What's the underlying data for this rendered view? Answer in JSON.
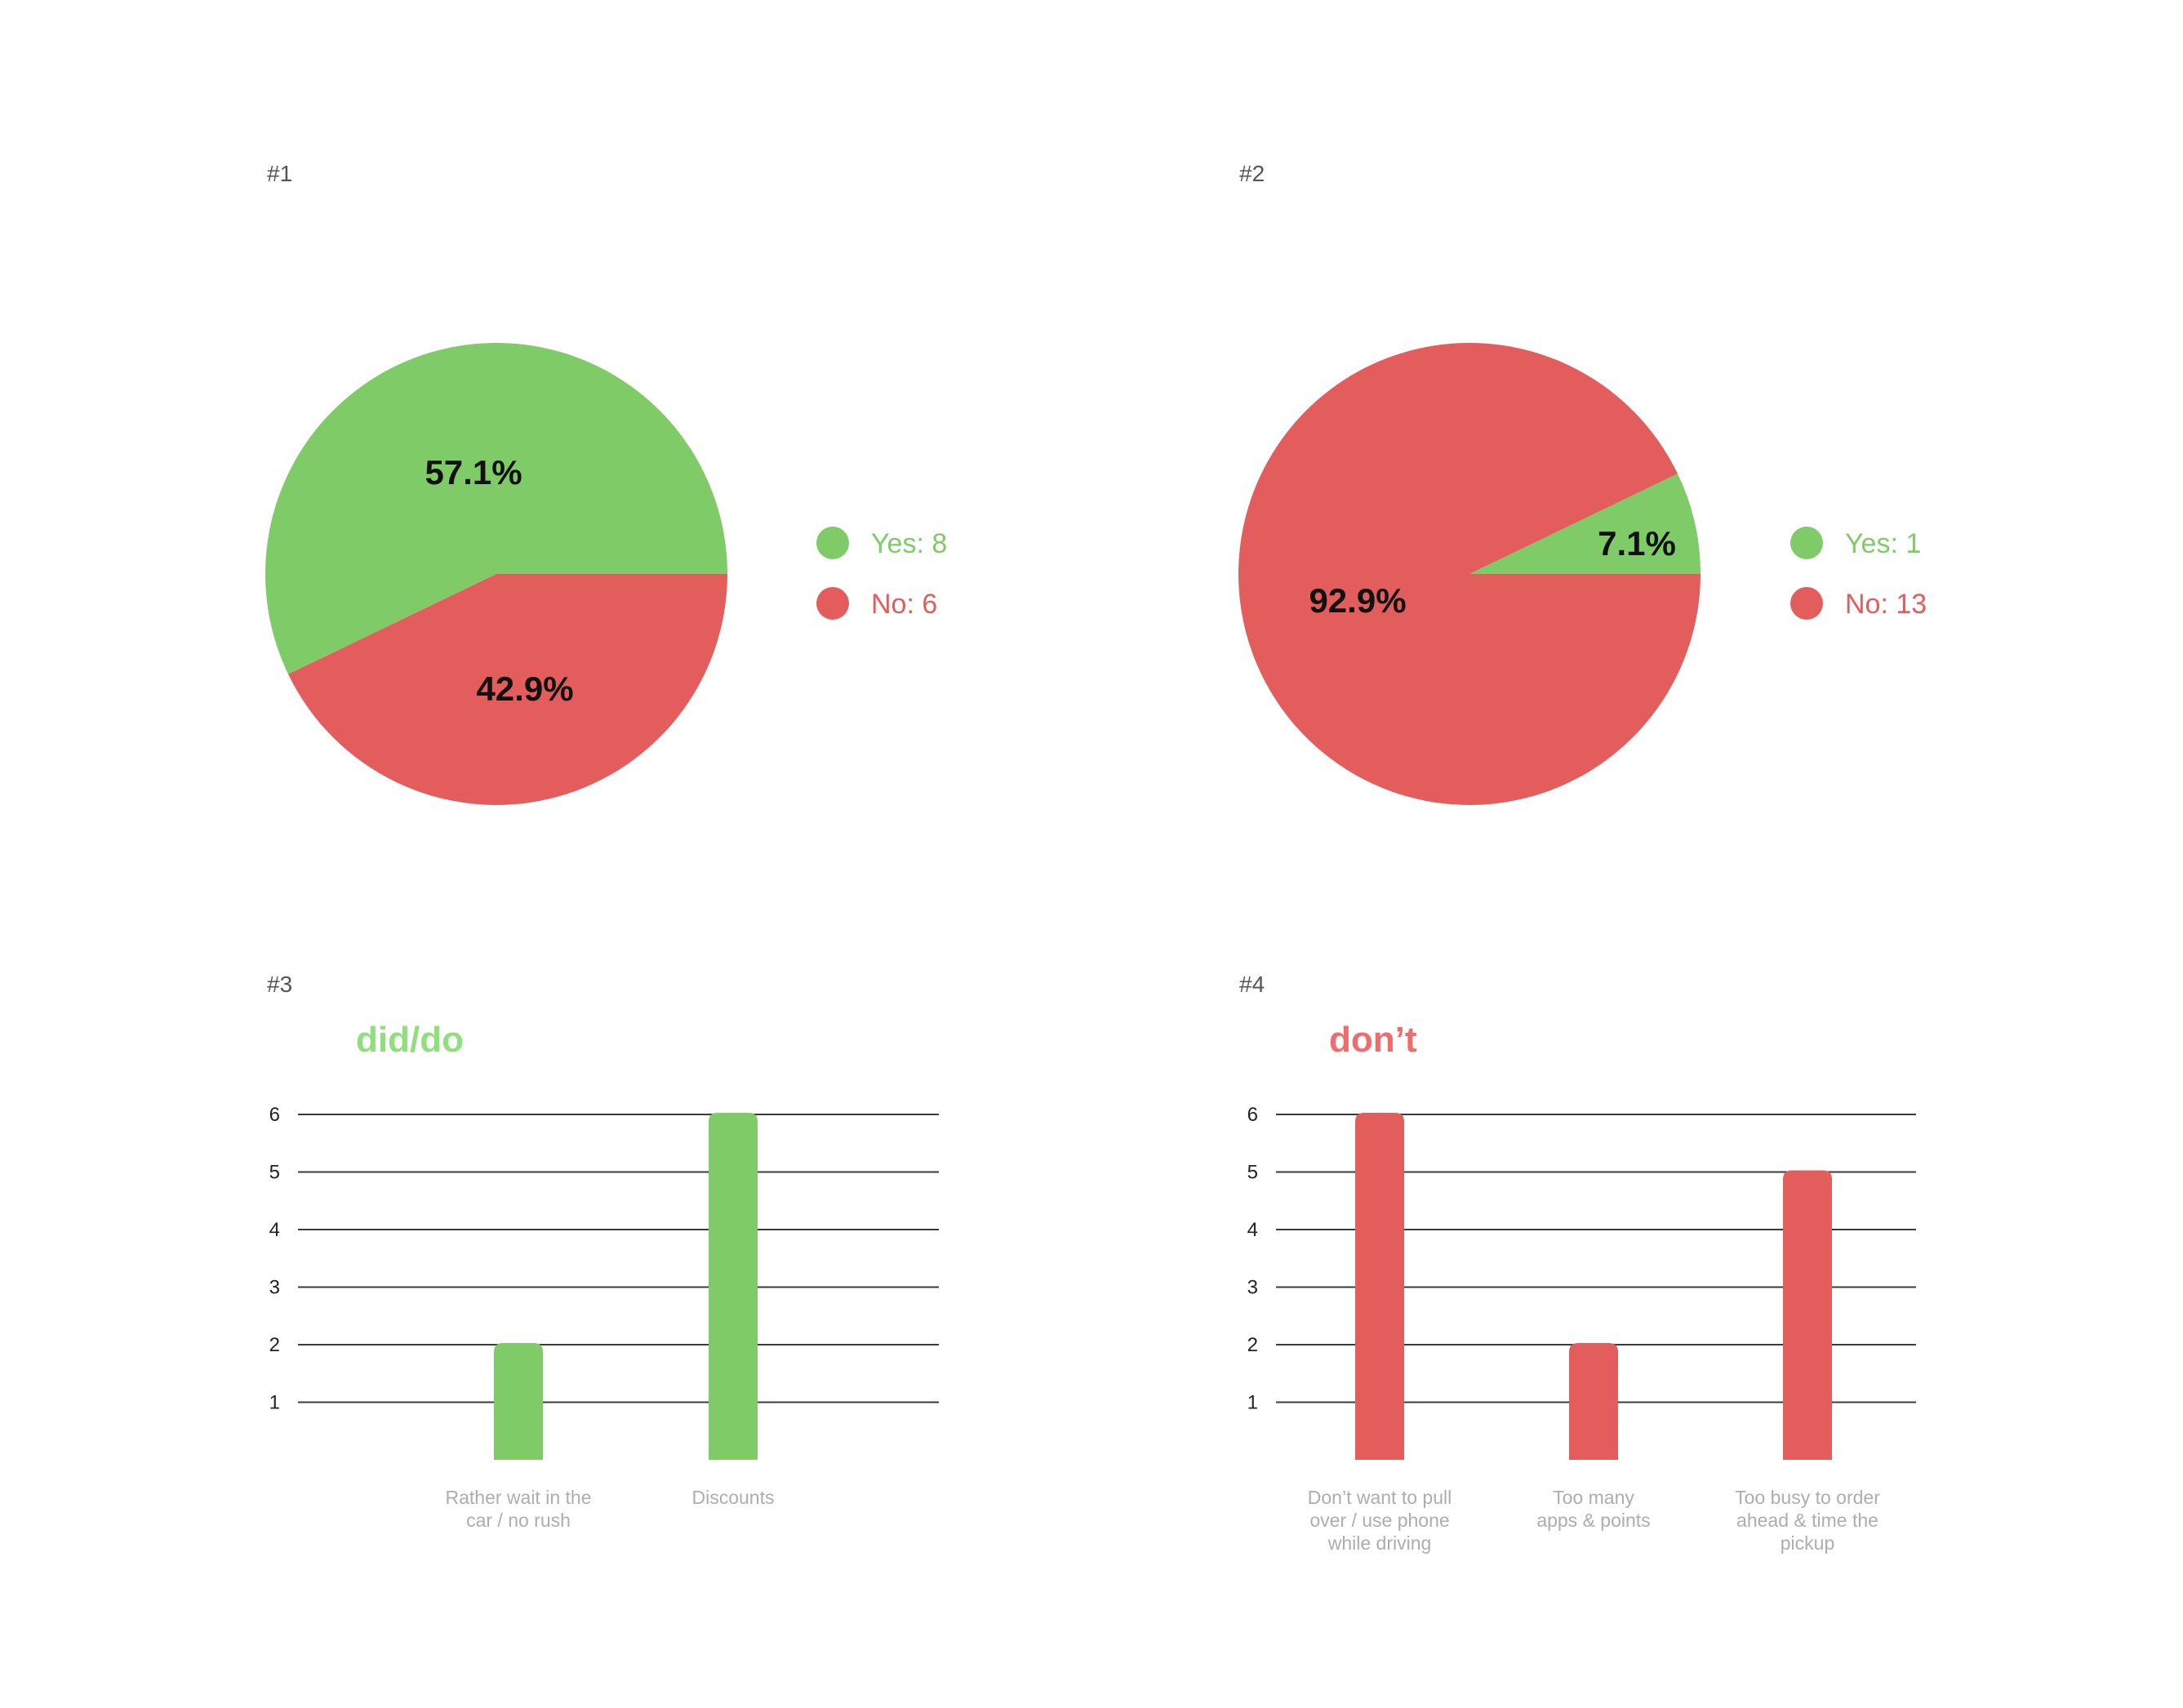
{
  "colors": {
    "green": "#7ECB67",
    "red": "#E35D5D",
    "grid": "#3b3b3b",
    "tick": "#222222",
    "cat_label": "#ADADAD",
    "panel_label": "#555555",
    "slice_label": "#111111"
  },
  "chart_data": [
    {
      "type": "pie",
      "panel_label": "#1",
      "slices": [
        {
          "legend": "Yes: 8",
          "name": "Yes",
          "value": 8,
          "pct_label": "57.1%",
          "color": "#7ECB67"
        },
        {
          "legend": "No: 6",
          "name": "No",
          "value": 6,
          "pct_label": "42.9%",
          "color": "#E35D5D"
        }
      ],
      "legend_placement": "right"
    },
    {
      "type": "pie",
      "panel_label": "#2",
      "slices": [
        {
          "legend": "Yes: 1",
          "name": "Yes",
          "value": 1,
          "pct_label": "7.1%",
          "color": "#7ECB67"
        },
        {
          "legend": "No: 13",
          "name": "No",
          "value": 13,
          "pct_label": "92.9%",
          "color": "#E35D5D"
        }
      ],
      "legend_placement": "right"
    },
    {
      "type": "bar",
      "panel_label": "#3",
      "title": "did/do",
      "title_color": "#8EE07C",
      "bar_color": "#7ECB67",
      "categories": [
        "",
        "Rather wait in the car / no rush",
        "Discounts"
      ],
      "category_lines": [
        [],
        [
          "Rather wait in the",
          "car / no rush"
        ],
        [
          "Discounts"
        ]
      ],
      "values": [
        0,
        2,
        6
      ],
      "yticks": [
        1,
        2,
        3,
        4,
        5,
        6
      ],
      "ylim": [
        0,
        6
      ],
      "grid": true
    },
    {
      "type": "bar",
      "panel_label": "#4",
      "title": "don’t",
      "title_color": "#F26B6B",
      "bar_color": "#E35D5D",
      "categories": [
        "Don’t want to pull over / use phone while driving",
        "Too many apps & points",
        "Too busy to order ahead & time the pickup"
      ],
      "category_lines": [
        [
          "Don’t want to pull",
          "over / use phone",
          "while driving"
        ],
        [
          "Too many",
          "apps & points"
        ],
        [
          "Too busy to order",
          "ahead & time the",
          "pickup"
        ]
      ],
      "values": [
        6,
        2,
        5
      ],
      "yticks": [
        1,
        2,
        3,
        4,
        5,
        6
      ],
      "ylim": [
        0,
        6
      ],
      "grid": true
    }
  ]
}
